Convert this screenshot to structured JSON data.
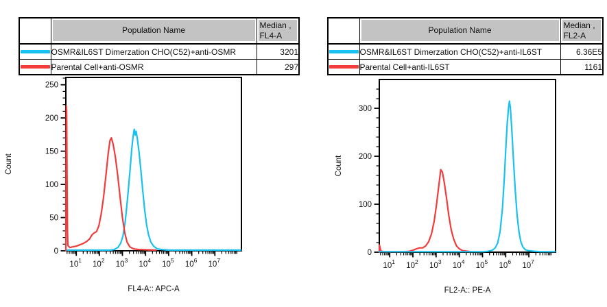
{
  "colors": {
    "cyan": "#18C1F0",
    "red": "#F23B3B",
    "table_header_bg": "#C3C3C3",
    "axis": "#000000",
    "text": "#111111"
  },
  "panels": [
    {
      "table": {
        "header": {
          "population": "Population Name",
          "median_line1": "Median ,",
          "median_line2": "FL4-A"
        },
        "rows": [
          {
            "swatch_color": "cyan",
            "population": "OSMR&IL6ST Dimerzation CHO(C52)+anti-OSMR",
            "median": "3201"
          },
          {
            "swatch_color": "red",
            "population": "Parental Cell+anti-OSMR",
            "median": "297"
          }
        ]
      }
    },
    {
      "table": {
        "header": {
          "population": "Population Name",
          "median_line1": "Median ,",
          "median_line2": "FL2-A"
        },
        "rows": [
          {
            "swatch_color": "cyan",
            "population": "OSMR&IL6ST Dimerzation CHO(C52)+anti-IL6ST",
            "median": "6.36E5"
          },
          {
            "swatch_color": "red",
            "population": "Parental Cell+anti-IL6ST",
            "median": "1161"
          }
        ]
      }
    }
  ],
  "chart_data": [
    {
      "type": "line",
      "subtype": "flow-cytometry-histogram-overlay",
      "xlabel": "FL4-A:: APC-A",
      "ylabel": "Count",
      "xscale": "log",
      "xlim_log10": [
        0.55,
        8.15
      ],
      "ylim": [
        0,
        261
      ],
      "xticks_log10": [
        1,
        2,
        3,
        4,
        5,
        6,
        7
      ],
      "yticks": [
        0,
        50,
        100,
        150,
        200,
        250
      ],
      "y_minor_step": 10,
      "grid": false,
      "legend_position": "table-above",
      "series": [
        {
          "name": "OSMR&IL6ST Dimerzation CHO(C52)+anti-OSMR",
          "color_key": "cyan",
          "median": "3201",
          "peak_log10x": 3.51,
          "peak_count": 183,
          "points": [
            [
              0.55,
              1
            ],
            [
              2.5,
              1
            ],
            [
              2.65,
              2
            ],
            [
              2.8,
              5
            ],
            [
              2.92,
              11
            ],
            [
              3.02,
              22
            ],
            [
              3.12,
              44
            ],
            [
              3.22,
              78
            ],
            [
              3.32,
              118
            ],
            [
              3.4,
              152
            ],
            [
              3.46,
              172
            ],
            [
              3.51,
              183
            ],
            [
              3.55,
              174
            ],
            [
              3.59,
              180
            ],
            [
              3.64,
              170
            ],
            [
              3.72,
              148
            ],
            [
              3.8,
              120
            ],
            [
              3.88,
              90
            ],
            [
              3.96,
              62
            ],
            [
              4.04,
              40
            ],
            [
              4.13,
              24
            ],
            [
              4.23,
              13
            ],
            [
              4.35,
              7
            ],
            [
              4.5,
              3
            ],
            [
              4.7,
              2
            ],
            [
              5.0,
              1
            ],
            [
              8.13,
              1
            ]
          ]
        },
        {
          "name": "Parental Cell+anti-OSMR",
          "color_key": "red",
          "median": "297",
          "peak_log10x": 2.52,
          "peak_count": 170,
          "points": [
            [
              0.55,
              0
            ],
            [
              0.56,
              122
            ],
            [
              0.57,
              218
            ],
            [
              0.585,
              210
            ],
            [
              0.6,
              122
            ],
            [
              0.62,
              30
            ],
            [
              0.64,
              8
            ],
            [
              0.72,
              5
            ],
            [
              0.85,
              6
            ],
            [
              1.0,
              7
            ],
            [
              1.15,
              9
            ],
            [
              1.3,
              11
            ],
            [
              1.45,
              14
            ],
            [
              1.58,
              18
            ],
            [
              1.68,
              24
            ],
            [
              1.78,
              27
            ],
            [
              1.88,
              29
            ],
            [
              1.98,
              38
            ],
            [
              2.08,
              55
            ],
            [
              2.18,
              80
            ],
            [
              2.28,
              112
            ],
            [
              2.38,
              145
            ],
            [
              2.46,
              166
            ],
            [
              2.52,
              170
            ],
            [
              2.6,
              160
            ],
            [
              2.7,
              140
            ],
            [
              2.8,
              112
            ],
            [
              2.9,
              80
            ],
            [
              3.0,
              50
            ],
            [
              3.1,
              27
            ],
            [
              3.2,
              13
            ],
            [
              3.32,
              6
            ],
            [
              3.48,
              3
            ],
            [
              3.7,
              2
            ],
            [
              4.0,
              1.5
            ],
            [
              4.45,
              1
            ]
          ]
        }
      ]
    },
    {
      "type": "line",
      "subtype": "flow-cytometry-histogram-overlay",
      "xlabel": "FL2-A:: PE-A",
      "ylabel": "Count",
      "xscale": "log",
      "xlim_log10": [
        0.55,
        8.15
      ],
      "ylim": [
        0,
        360
      ],
      "xticks_log10": [
        1,
        2,
        3,
        4,
        5,
        6,
        7
      ],
      "yticks": [
        0,
        100,
        200,
        300
      ],
      "y_minor_step": 20,
      "grid": false,
      "legend_position": "table-above",
      "series": [
        {
          "name": "Parental Cell+anti-IL6ST",
          "color_key": "red",
          "median": "1161",
          "peak_log10x": 3.2,
          "peak_count": 172,
          "points": [
            [
              0.55,
              0
            ],
            [
              0.557,
              15
            ],
            [
              0.58,
              10
            ],
            [
              0.61,
              3
            ],
            [
              0.7,
              1
            ],
            [
              1.6,
              1
            ],
            [
              1.85,
              2
            ],
            [
              2.0,
              4
            ],
            [
              2.15,
              7
            ],
            [
              2.3,
              9
            ],
            [
              2.42,
              9
            ],
            [
              2.55,
              13
            ],
            [
              2.68,
              22
            ],
            [
              2.8,
              38
            ],
            [
              2.92,
              65
            ],
            [
              3.02,
              100
            ],
            [
              3.12,
              140
            ],
            [
              3.2,
              172
            ],
            [
              3.27,
              167
            ],
            [
              3.35,
              146
            ],
            [
              3.45,
              112
            ],
            [
              3.55,
              76
            ],
            [
              3.65,
              47
            ],
            [
              3.76,
              27
            ],
            [
              3.88,
              13
            ],
            [
              4.0,
              7
            ],
            [
              4.15,
              3
            ],
            [
              4.35,
              2
            ],
            [
              4.5,
              1
            ]
          ]
        },
        {
          "name": "OSMR&IL6ST Dimerzation CHO(C52)+anti-IL6ST",
          "color_key": "cyan",
          "median": "6.36E5",
          "peak_log10x": 6.16,
          "peak_count": 315,
          "points": [
            [
              0.55,
              1
            ],
            [
              5.05,
              1
            ],
            [
              5.25,
              2
            ],
            [
              5.42,
              4
            ],
            [
              5.55,
              9
            ],
            [
              5.66,
              20
            ],
            [
              5.76,
              44
            ],
            [
              5.86,
              92
            ],
            [
              5.94,
              155
            ],
            [
              6.01,
              220
            ],
            [
              6.07,
              272
            ],
            [
              6.12,
              300
            ],
            [
              6.16,
              315
            ],
            [
              6.2,
              302
            ],
            [
              6.26,
              258
            ],
            [
              6.33,
              195
            ],
            [
              6.41,
              130
            ],
            [
              6.49,
              78
            ],
            [
              6.57,
              43
            ],
            [
              6.65,
              22
            ],
            [
              6.74,
              11
            ],
            [
              6.85,
              5
            ],
            [
              7.0,
              3
            ],
            [
              7.2,
              2
            ],
            [
              7.5,
              1
            ],
            [
              8.13,
              1
            ]
          ]
        }
      ]
    }
  ]
}
